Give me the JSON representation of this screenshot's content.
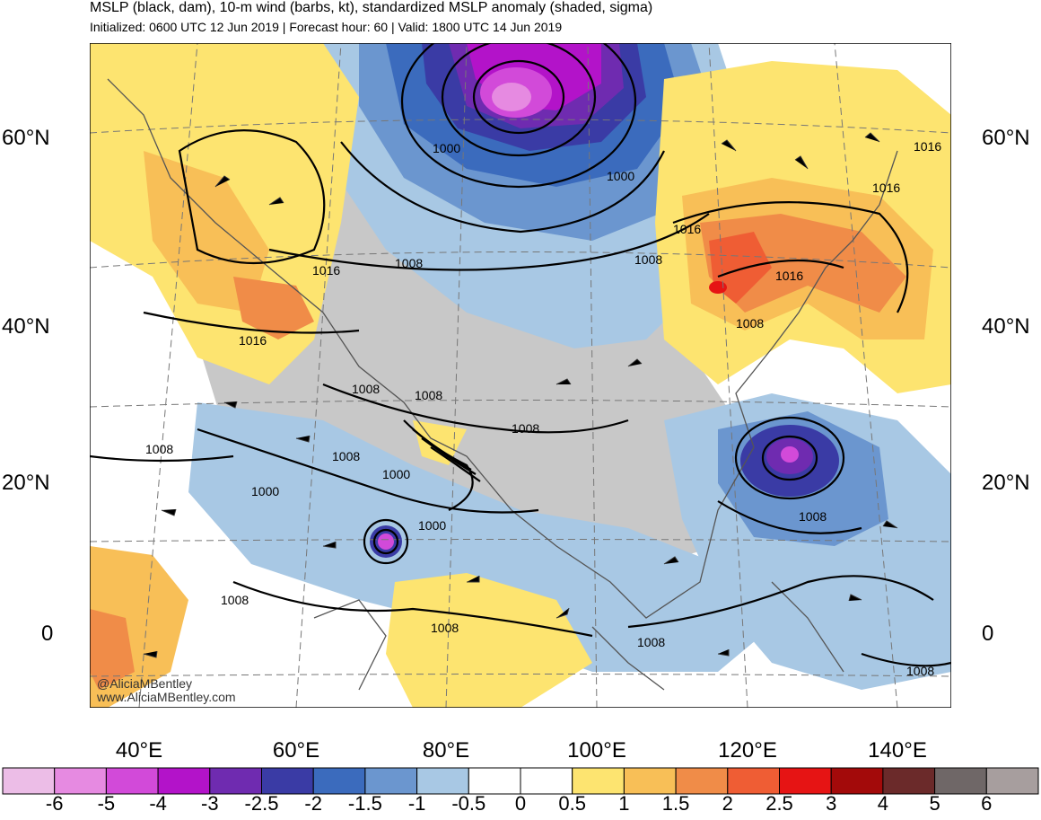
{
  "title": "MSLP (black, dam), 10-m wind (barbs, kt), standardized MSLP anomaly (shaded, sigma)",
  "subtitle": "Initialized: 0600 UTC 12 Jun 2019 | Forecast hour: 60 | Valid: 1800 UTC 14 Jun 2019",
  "credit": {
    "handle": "@AliciaMBentley",
    "site": "www.AliciaMBentley.com"
  },
  "latitude_labels": [
    "60°N",
    "40°N",
    "20°N",
    "0"
  ],
  "longitude_labels": [
    "40°E",
    "60°E",
    "80°E",
    "100°E",
    "120°E",
    "140°E"
  ],
  "isobar_labels": [
    "1016",
    "1016",
    "1016",
    "1016",
    "1016",
    "1016",
    "1008",
    "1008",
    "1008",
    "1008",
    "1008",
    "1008",
    "1008",
    "1008",
    "1008",
    "1008",
    "1008",
    "1000",
    "1000",
    "1000",
    "1000",
    "1000"
  ],
  "colorbar": {
    "colors": [
      "#ecbde7",
      "#e68ae1",
      "#d24ad9",
      "#b313c9",
      "#6f2bb0",
      "#3a3ba5",
      "#3b6bbd",
      "#6b96cf",
      "#a8c8e4",
      "#ffffff",
      "#ffffff",
      "#fde470",
      "#f8bf57",
      "#f08c48",
      "#ef5d34",
      "#e61414",
      "#a30a0a",
      "#6b2a2a",
      "#6f6767",
      "#a79e9e"
    ],
    "tick_labels": [
      "-6",
      "-5",
      "-4",
      "-3",
      "-2.5",
      "-2",
      "-1.5",
      "-1",
      "-0.5",
      "0",
      "0.5",
      "1",
      "1.5",
      "2",
      "2.5",
      "3",
      "4",
      "5",
      "6"
    ]
  }
}
